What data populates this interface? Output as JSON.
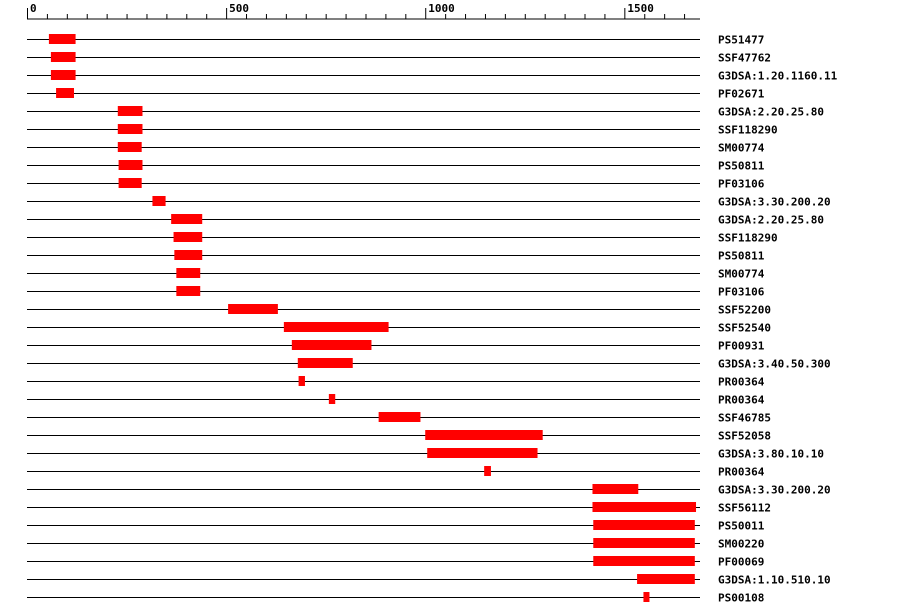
{
  "chart_data": {
    "type": "domain-track",
    "axis": {
      "min": 0,
      "max": 1690,
      "major_ticks": [
        0,
        500,
        1000,
        1500
      ],
      "major_labels": [
        "0",
        "500",
        "1000",
        "1500"
      ],
      "minor_step": 50
    },
    "colors": {
      "domain": "#ff0000",
      "line": "#000000"
    },
    "rows": [
      {
        "label": "PS51477",
        "start": 55,
        "end": 122
      },
      {
        "label": "SSF47762",
        "start": 60,
        "end": 122
      },
      {
        "label": "G3DSA:1.20.1160.11",
        "start": 60,
        "end": 122
      },
      {
        "label": "PF02671",
        "start": 73,
        "end": 118
      },
      {
        "label": "G3DSA:2.20.25.80",
        "start": 228,
        "end": 290
      },
      {
        "label": "SSF118290",
        "start": 228,
        "end": 290
      },
      {
        "label": "SM00774",
        "start": 228,
        "end": 288
      },
      {
        "label": "PS50811",
        "start": 230,
        "end": 290
      },
      {
        "label": "PF03106",
        "start": 230,
        "end": 288
      },
      {
        "label": "G3DSA:3.30.200.20",
        "start": 315,
        "end": 348
      },
      {
        "label": "G3DSA:2.20.25.80",
        "start": 362,
        "end": 440
      },
      {
        "label": "SSF118290",
        "start": 368,
        "end": 440
      },
      {
        "label": "PS50811",
        "start": 370,
        "end": 440
      },
      {
        "label": "SM00774",
        "start": 375,
        "end": 435
      },
      {
        "label": "PF03106",
        "start": 375,
        "end": 435
      },
      {
        "label": "SSF52200",
        "start": 505,
        "end": 630
      },
      {
        "label": "SSF52540",
        "start": 645,
        "end": 908
      },
      {
        "label": "PF00931",
        "start": 665,
        "end": 865
      },
      {
        "label": "G3DSA:3.40.50.300",
        "start": 680,
        "end": 818
      },
      {
        "label": "PR00364",
        "start": 682,
        "end": 698
      },
      {
        "label": "PR00364",
        "start": 758,
        "end": 774
      },
      {
        "label": "SSF46785",
        "start": 883,
        "end": 988
      },
      {
        "label": "SSF52058",
        "start": 1000,
        "end": 1295
      },
      {
        "label": "G3DSA:3.80.10.10",
        "start": 1005,
        "end": 1282
      },
      {
        "label": "PR00364",
        "start": 1148,
        "end": 1165
      },
      {
        "label": "G3DSA:3.30.200.20",
        "start": 1420,
        "end": 1535
      },
      {
        "label": "SSF56112",
        "start": 1420,
        "end": 1680
      },
      {
        "label": "PS50011",
        "start": 1422,
        "end": 1677
      },
      {
        "label": "SM00220",
        "start": 1422,
        "end": 1677
      },
      {
        "label": "PF00069",
        "start": 1422,
        "end": 1677
      },
      {
        "label": "G3DSA:1.10.510.10",
        "start": 1532,
        "end": 1677
      },
      {
        "label": "PS00108",
        "start": 1548,
        "end": 1563
      }
    ]
  }
}
